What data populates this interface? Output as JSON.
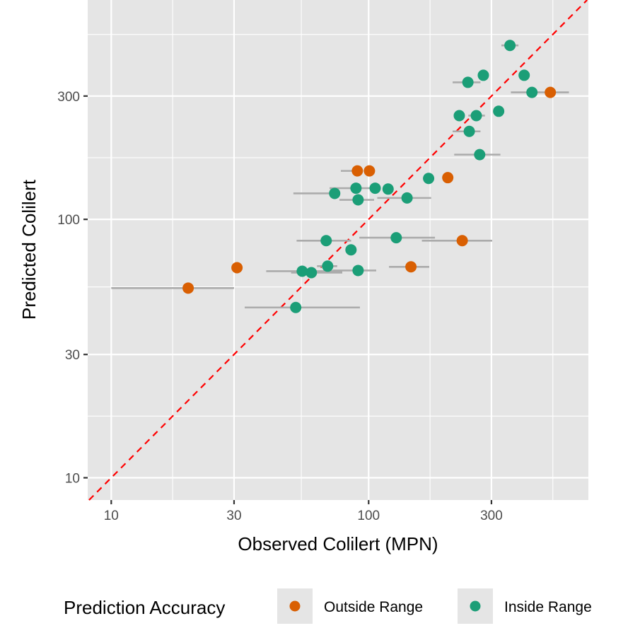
{
  "chart_data": {
    "type": "scatter",
    "title": "",
    "xlabel": "Observed Colilert (MPN)",
    "ylabel": "Predicted Colilert",
    "x_scale": "log10",
    "y_scale": "log10",
    "xlim": [
      8.1,
      714
    ],
    "ylim": [
      8.2,
      706
    ],
    "x_ticks": [
      10,
      30,
      100,
      300
    ],
    "x_tick_labels": [
      "10",
      "30",
      "100",
      "300"
    ],
    "y_ticks": [
      10,
      30,
      100,
      300
    ],
    "y_tick_labels": [
      "10",
      "30",
      "100",
      "300"
    ],
    "grid": true,
    "reference_line": {
      "type": "identity",
      "style": "dashed",
      "color": "#FF0000",
      "label": "y = x"
    },
    "legend": {
      "title": "Prediction Accuracy",
      "position": "bottom",
      "entries": [
        {
          "label": "Outside Range",
          "color": "#D95F02"
        },
        {
          "label": "Inside Range",
          "color": "#1B9E77"
        }
      ]
    },
    "colors": {
      "outside": "#D95F02",
      "inside": "#1B9E77",
      "errorbar": "#ABABAB",
      "panel": "#E5E5E5",
      "grid": "#FFFFFF"
    },
    "series": [
      {
        "name": "Outside Range",
        "points": [
          {
            "x": 19.9,
            "y": 54.2,
            "xmin": 10.0,
            "xmax": 30.0
          },
          {
            "x": 30.8,
            "y": 65.0,
            "xmin": null,
            "xmax": null
          },
          {
            "x": 90.4,
            "y": 154,
            "xmin": 78,
            "xmax": 90.4
          },
          {
            "x": 100.7,
            "y": 154,
            "xmin": null,
            "xmax": null
          },
          {
            "x": 146,
            "y": 65.5,
            "xmin": 120,
            "xmax": 172
          },
          {
            "x": 203,
            "y": 145,
            "xmin": null,
            "xmax": null
          },
          {
            "x": 231,
            "y": 82.7,
            "xmin": 161,
            "xmax": 302
          },
          {
            "x": 508,
            "y": 310,
            "xmin": 431,
            "xmax": 600
          }
        ]
      },
      {
        "name": "Inside Range",
        "points": [
          {
            "x": 52.1,
            "y": 45.6,
            "xmin": 33.0,
            "xmax": 92.5
          },
          {
            "x": 55.2,
            "y": 63.0,
            "xmin": 40.0,
            "xmax": 79.0
          },
          {
            "x": 59.9,
            "y": 62.2,
            "xmin": 50.0,
            "xmax": 79.0
          },
          {
            "x": 68.4,
            "y": 82.7,
            "xmin": 52.5,
            "xmax": 85.5
          },
          {
            "x": 69.3,
            "y": 65.9,
            "xmin": 63.0,
            "xmax": 75.5
          },
          {
            "x": 73.8,
            "y": 126,
            "xmin": 51.0,
            "xmax": 74.5
          },
          {
            "x": 85.4,
            "y": 76.2,
            "xmin": null,
            "xmax": null
          },
          {
            "x": 89.3,
            "y": 132,
            "xmin": 70.5,
            "xmax": 104
          },
          {
            "x": 91.0,
            "y": 119,
            "xmin": 77.0,
            "xmax": 105
          },
          {
            "x": 91.0,
            "y": 63.4,
            "xmin": 72.5,
            "xmax": 107
          },
          {
            "x": 106,
            "y": 132,
            "xmin": null,
            "xmax": null
          },
          {
            "x": 119,
            "y": 131,
            "xmin": null,
            "xmax": null
          },
          {
            "x": 128,
            "y": 84.9,
            "xmin": 92.0,
            "xmax": 181
          },
          {
            "x": 141,
            "y": 121,
            "xmin": 108,
            "xmax": 175
          },
          {
            "x": 171,
            "y": 144,
            "xmin": null,
            "xmax": null
          },
          {
            "x": 225,
            "y": 252,
            "xmin": null,
            "xmax": null
          },
          {
            "x": 243,
            "y": 339,
            "xmin": 212,
            "xmax": 272
          },
          {
            "x": 246,
            "y": 219,
            "xmin": 212,
            "xmax": 272
          },
          {
            "x": 262,
            "y": 252,
            "xmin": 244,
            "xmax": 283
          },
          {
            "x": 270,
            "y": 178,
            "xmin": 215,
            "xmax": 325
          },
          {
            "x": 279,
            "y": 361,
            "xmin": null,
            "xmax": null
          },
          {
            "x": 320,
            "y": 262,
            "xmin": null,
            "xmax": null
          },
          {
            "x": 354,
            "y": 471,
            "xmin": 328,
            "xmax": 382
          },
          {
            "x": 402,
            "y": 361,
            "xmin": null,
            "xmax": null
          },
          {
            "x": 431,
            "y": 310,
            "xmin": 357,
            "xmax": 465
          }
        ]
      }
    ]
  }
}
